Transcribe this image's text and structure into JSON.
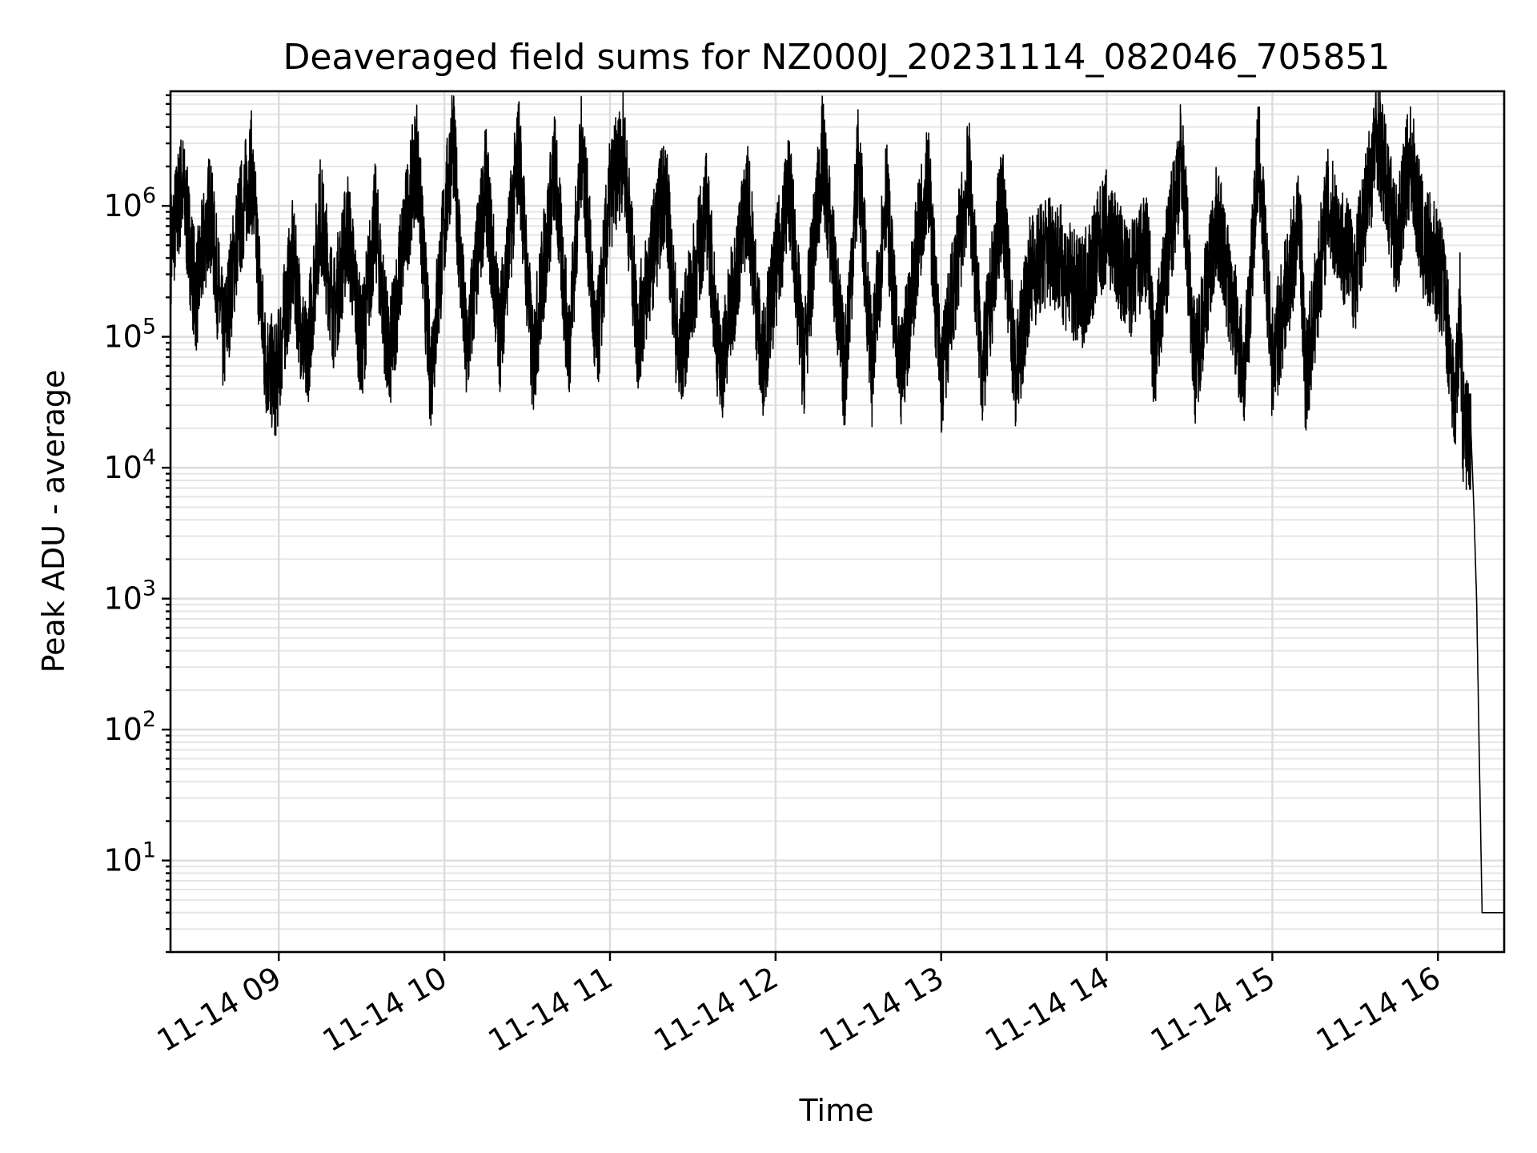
{
  "chart_data": {
    "type": "line",
    "title": "Deaveraged field sums for NZ000J_20231114_082046_705851",
    "xlabel": "Time",
    "ylabel": "Peak ADU - average",
    "yscale": "log",
    "ylim": [
      2,
      7500000
    ],
    "xlim": [
      "2023-11-14 08:20:46",
      "2023-11-14 16:24:00"
    ],
    "grid": true,
    "x_ticks": [
      {
        "t": "2023-11-14 09:00",
        "label": "11-14 09"
      },
      {
        "t": "2023-11-14 10:00",
        "label": "11-14 10"
      },
      {
        "t": "2023-11-14 11:00",
        "label": "11-14 11"
      },
      {
        "t": "2023-11-14 12:00",
        "label": "11-14 12"
      },
      {
        "t": "2023-11-14 13:00",
        "label": "11-14 13"
      },
      {
        "t": "2023-11-14 14:00",
        "label": "11-14 14"
      },
      {
        "t": "2023-11-14 15:00",
        "label": "11-14 15"
      },
      {
        "t": "2023-11-14 16:00",
        "label": "11-14 16"
      }
    ],
    "y_ticks": [
      {
        "value": 10,
        "base": "10",
        "exp": "1"
      },
      {
        "value": 100,
        "base": "10",
        "exp": "2"
      },
      {
        "value": 1000,
        "base": "10",
        "exp": "3"
      },
      {
        "value": 10000,
        "base": "10",
        "exp": "4"
      },
      {
        "value": 100000,
        "base": "10",
        "exp": "5"
      },
      {
        "value": 1000000,
        "base": "10",
        "exp": "6"
      }
    ],
    "series": [
      {
        "color": "#000000",
        "points": [
          [
            "2023-11-14 08:21",
            500000
          ],
          [
            "2023-11-14 08:25",
            1500000
          ],
          [
            "2023-11-14 08:30",
            200000
          ],
          [
            "2023-11-14 08:35",
            1000000
          ],
          [
            "2023-11-14 08:40",
            90000
          ],
          [
            "2023-11-14 08:45",
            600000
          ],
          [
            "2023-11-14 08:50",
            2000000
          ],
          [
            "2023-11-14 08:55",
            70000
          ],
          [
            "2023-11-14 08:59",
            45000
          ],
          [
            "2023-11-14 09:05",
            400000
          ],
          [
            "2023-11-14 09:10",
            60000
          ],
          [
            "2023-11-14 09:15",
            900000
          ],
          [
            "2023-11-14 09:20",
            150000
          ],
          [
            "2023-11-14 09:25",
            700000
          ],
          [
            "2023-11-14 09:30",
            80000
          ],
          [
            "2023-11-14 09:35",
            800000
          ],
          [
            "2023-11-14 09:40",
            60000
          ],
          [
            "2023-11-14 09:45",
            500000
          ],
          [
            "2023-11-14 09:50",
            2500000
          ],
          [
            "2023-11-14 09:55",
            50000
          ],
          [
            "2023-11-14 10:03",
            3500000
          ],
          [
            "2023-11-14 10:08",
            70000
          ],
          [
            "2023-11-14 10:15",
            1500000
          ],
          [
            "2023-11-14 10:20",
            100000
          ],
          [
            "2023-11-14 10:27",
            2800000
          ],
          [
            "2023-11-14 10:32",
            60000
          ],
          [
            "2023-11-14 10:40",
            2000000
          ],
          [
            "2023-11-14 10:45",
            80000
          ],
          [
            "2023-11-14 10:50",
            3300000
          ],
          [
            "2023-11-14 10:55",
            70000
          ],
          [
            "2023-11-14 11:00",
            1200000
          ],
          [
            "2023-11-14 11:05",
            2800000
          ],
          [
            "2023-11-14 11:10",
            100000
          ],
          [
            "2023-11-14 11:20",
            1500000
          ],
          [
            "2023-11-14 11:25",
            60000
          ],
          [
            "2023-11-14 11:35",
            1000000
          ],
          [
            "2023-11-14 11:40",
            50000
          ],
          [
            "2023-11-14 11:50",
            1200000
          ],
          [
            "2023-11-14 11:55",
            60000
          ],
          [
            "2023-11-14 12:05",
            1500000
          ],
          [
            "2023-11-14 12:10",
            60000
          ],
          [
            "2023-11-14 12:17",
            2600000
          ],
          [
            "2023-11-14 12:25",
            50000
          ],
          [
            "2023-11-14 12:30",
            2300000
          ],
          [
            "2023-11-14 12:35",
            55000
          ],
          [
            "2023-11-14 12:40",
            1400000
          ],
          [
            "2023-11-14 12:45",
            40000
          ],
          [
            "2023-11-14 12:55",
            2000000
          ],
          [
            "2023-11-14 13:00",
            45000
          ],
          [
            "2023-11-14 13:10",
            1800000
          ],
          [
            "2023-11-14 13:15",
            50000
          ],
          [
            "2023-11-14 13:22",
            1200000
          ],
          [
            "2023-11-14 13:27",
            45000
          ],
          [
            "2023-11-14 13:32",
            300000
          ],
          [
            "2023-11-14 13:40",
            500000
          ],
          [
            "2023-11-14 13:50",
            200000
          ],
          [
            "2023-11-14 14:00",
            700000
          ],
          [
            "2023-11-14 14:08",
            250000
          ],
          [
            "2023-11-14 14:15",
            500000
          ],
          [
            "2023-11-14 14:17",
            60000
          ],
          [
            "2023-11-14 14:27",
            2600000
          ],
          [
            "2023-11-14 14:32",
            60000
          ],
          [
            "2023-11-14 14:40",
            800000
          ],
          [
            "2023-11-14 14:50",
            50000
          ],
          [
            "2023-11-14 14:55",
            2700000
          ],
          [
            "2023-11-14 15:00",
            60000
          ],
          [
            "2023-11-14 15:10",
            800000
          ],
          [
            "2023-11-14 15:12",
            45000
          ],
          [
            "2023-11-14 15:20",
            1000000
          ],
          [
            "2023-11-14 15:30",
            300000
          ],
          [
            "2023-11-14 15:38",
            3800000
          ],
          [
            "2023-11-14 15:45",
            500000
          ],
          [
            "2023-11-14 15:50",
            2500000
          ],
          [
            "2023-11-14 15:55",
            450000
          ],
          [
            "2023-11-14 15:58",
            450000
          ],
          [
            "2023-11-14 16:02",
            250000
          ],
          [
            "2023-11-14 16:05",
            60000
          ],
          [
            "2023-11-14 16:06",
            25000
          ],
          [
            "2023-11-14 16:08",
            180000
          ],
          [
            "2023-11-14 16:09",
            20000
          ],
          [
            "2023-11-14 16:12",
            18000
          ],
          [
            "2023-11-14 16:13",
            5000
          ],
          [
            "2023-11-14 16:14",
            1000
          ],
          [
            "2023-11-14 16:15",
            60
          ],
          [
            "2023-11-14 16:16",
            4
          ],
          [
            "2023-11-14 16:24",
            4
          ]
        ]
      }
    ]
  }
}
